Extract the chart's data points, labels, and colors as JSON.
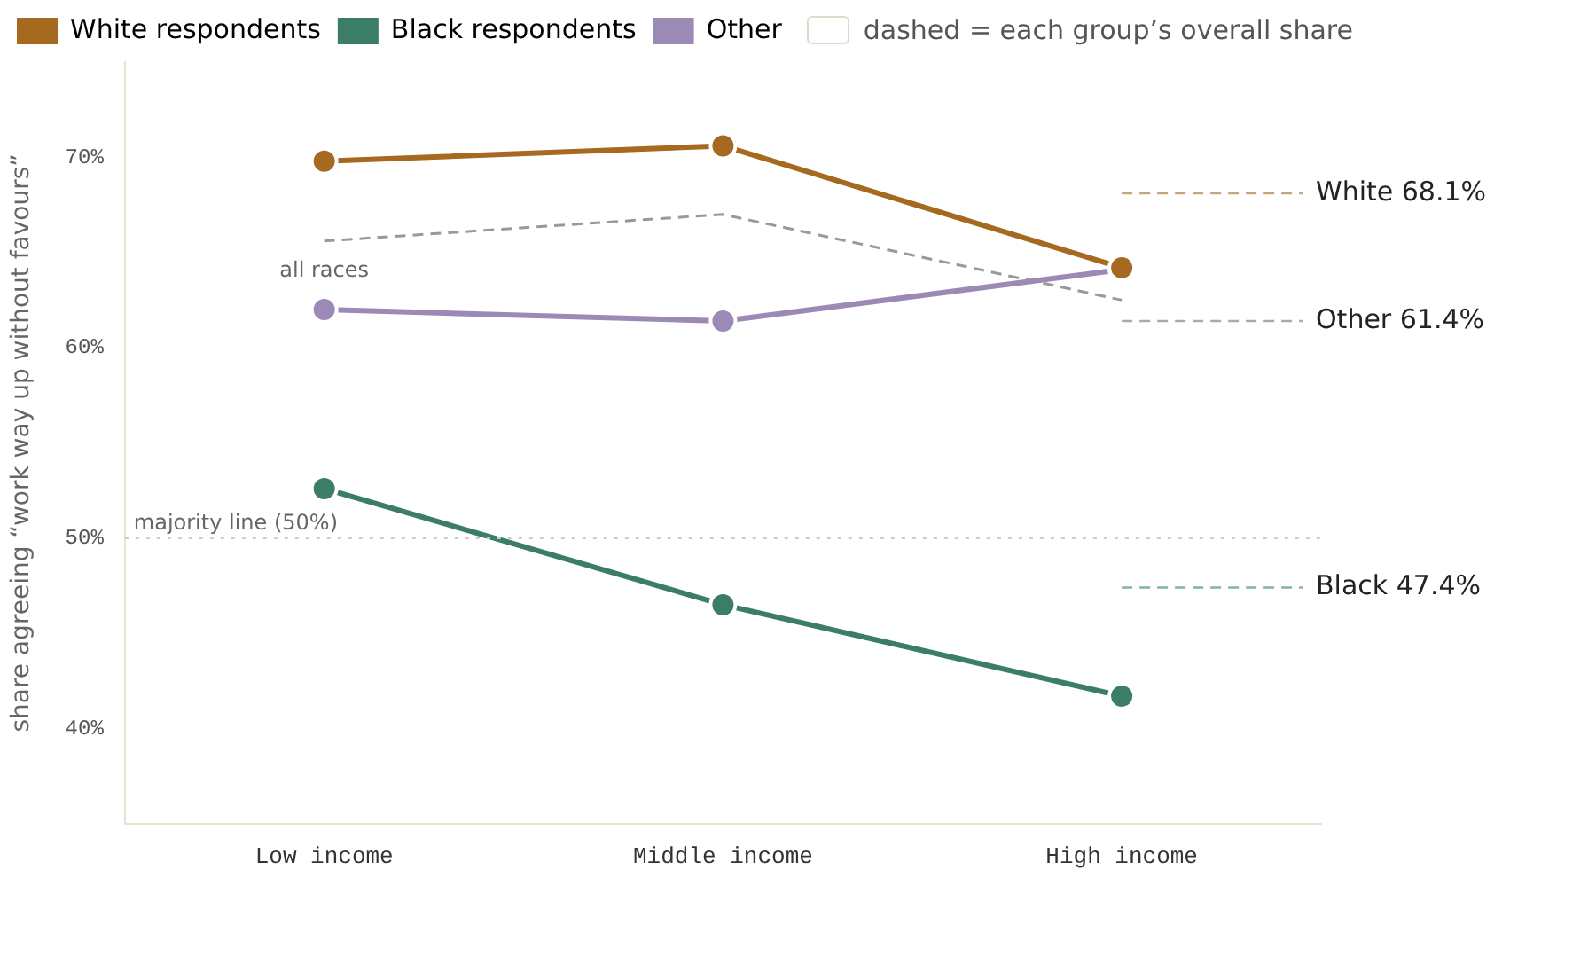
{
  "chart_data": {
    "type": "line",
    "ylabel": "share agreeing “work way up without favours”",
    "legend_title": "dashed = each group’s overall share",
    "categories": [
      "Low income",
      "Middle income",
      "High income"
    ],
    "series": [
      {
        "name": "White respondents",
        "color": "#a5691f",
        "values": [
          69.8,
          70.6,
          64.2
        ]
      },
      {
        "name": "Black respondents",
        "color": "#3c7d69",
        "values": [
          52.6,
          46.5,
          41.7
        ]
      },
      {
        "name": "Other",
        "color": "#9a8ab5",
        "values": [
          62.0,
          61.4,
          64.1
        ]
      },
      {
        "name": "all races",
        "color": "#999999",
        "values": [
          65.6,
          67.0,
          62.5
        ],
        "line_style": "dashed",
        "marker": "none"
      }
    ],
    "ylim": [
      35,
      75
    ],
    "yticks": [
      {
        "value": 40,
        "label": "40%"
      },
      {
        "value": 50,
        "label": "50%"
      },
      {
        "value": 60,
        "label": "60%"
      },
      {
        "value": 70,
        "label": "70%"
      }
    ],
    "ref_lines": [
      {
        "axis": "y",
        "value": 50,
        "label": "majority line (50%)",
        "color": "#cccccc",
        "line_style": "dotted"
      },
      {
        "axis": "y",
        "value": 68.1,
        "label": "White 68.1%",
        "color": "#c4a67a",
        "line_style": "dashed"
      },
      {
        "axis": "y",
        "value": 61.4,
        "label": "Other 61.4%",
        "color": "#aaaaaa",
        "line_style": "dashed"
      },
      {
        "axis": "y",
        "value": 47.4,
        "label": "Black 47.4%",
        "color": "#7fb5a5",
        "line_style": "dashed"
      }
    ],
    "grid": false,
    "legend": "top left",
    "marker": "circle",
    "line_style": "solid"
  }
}
